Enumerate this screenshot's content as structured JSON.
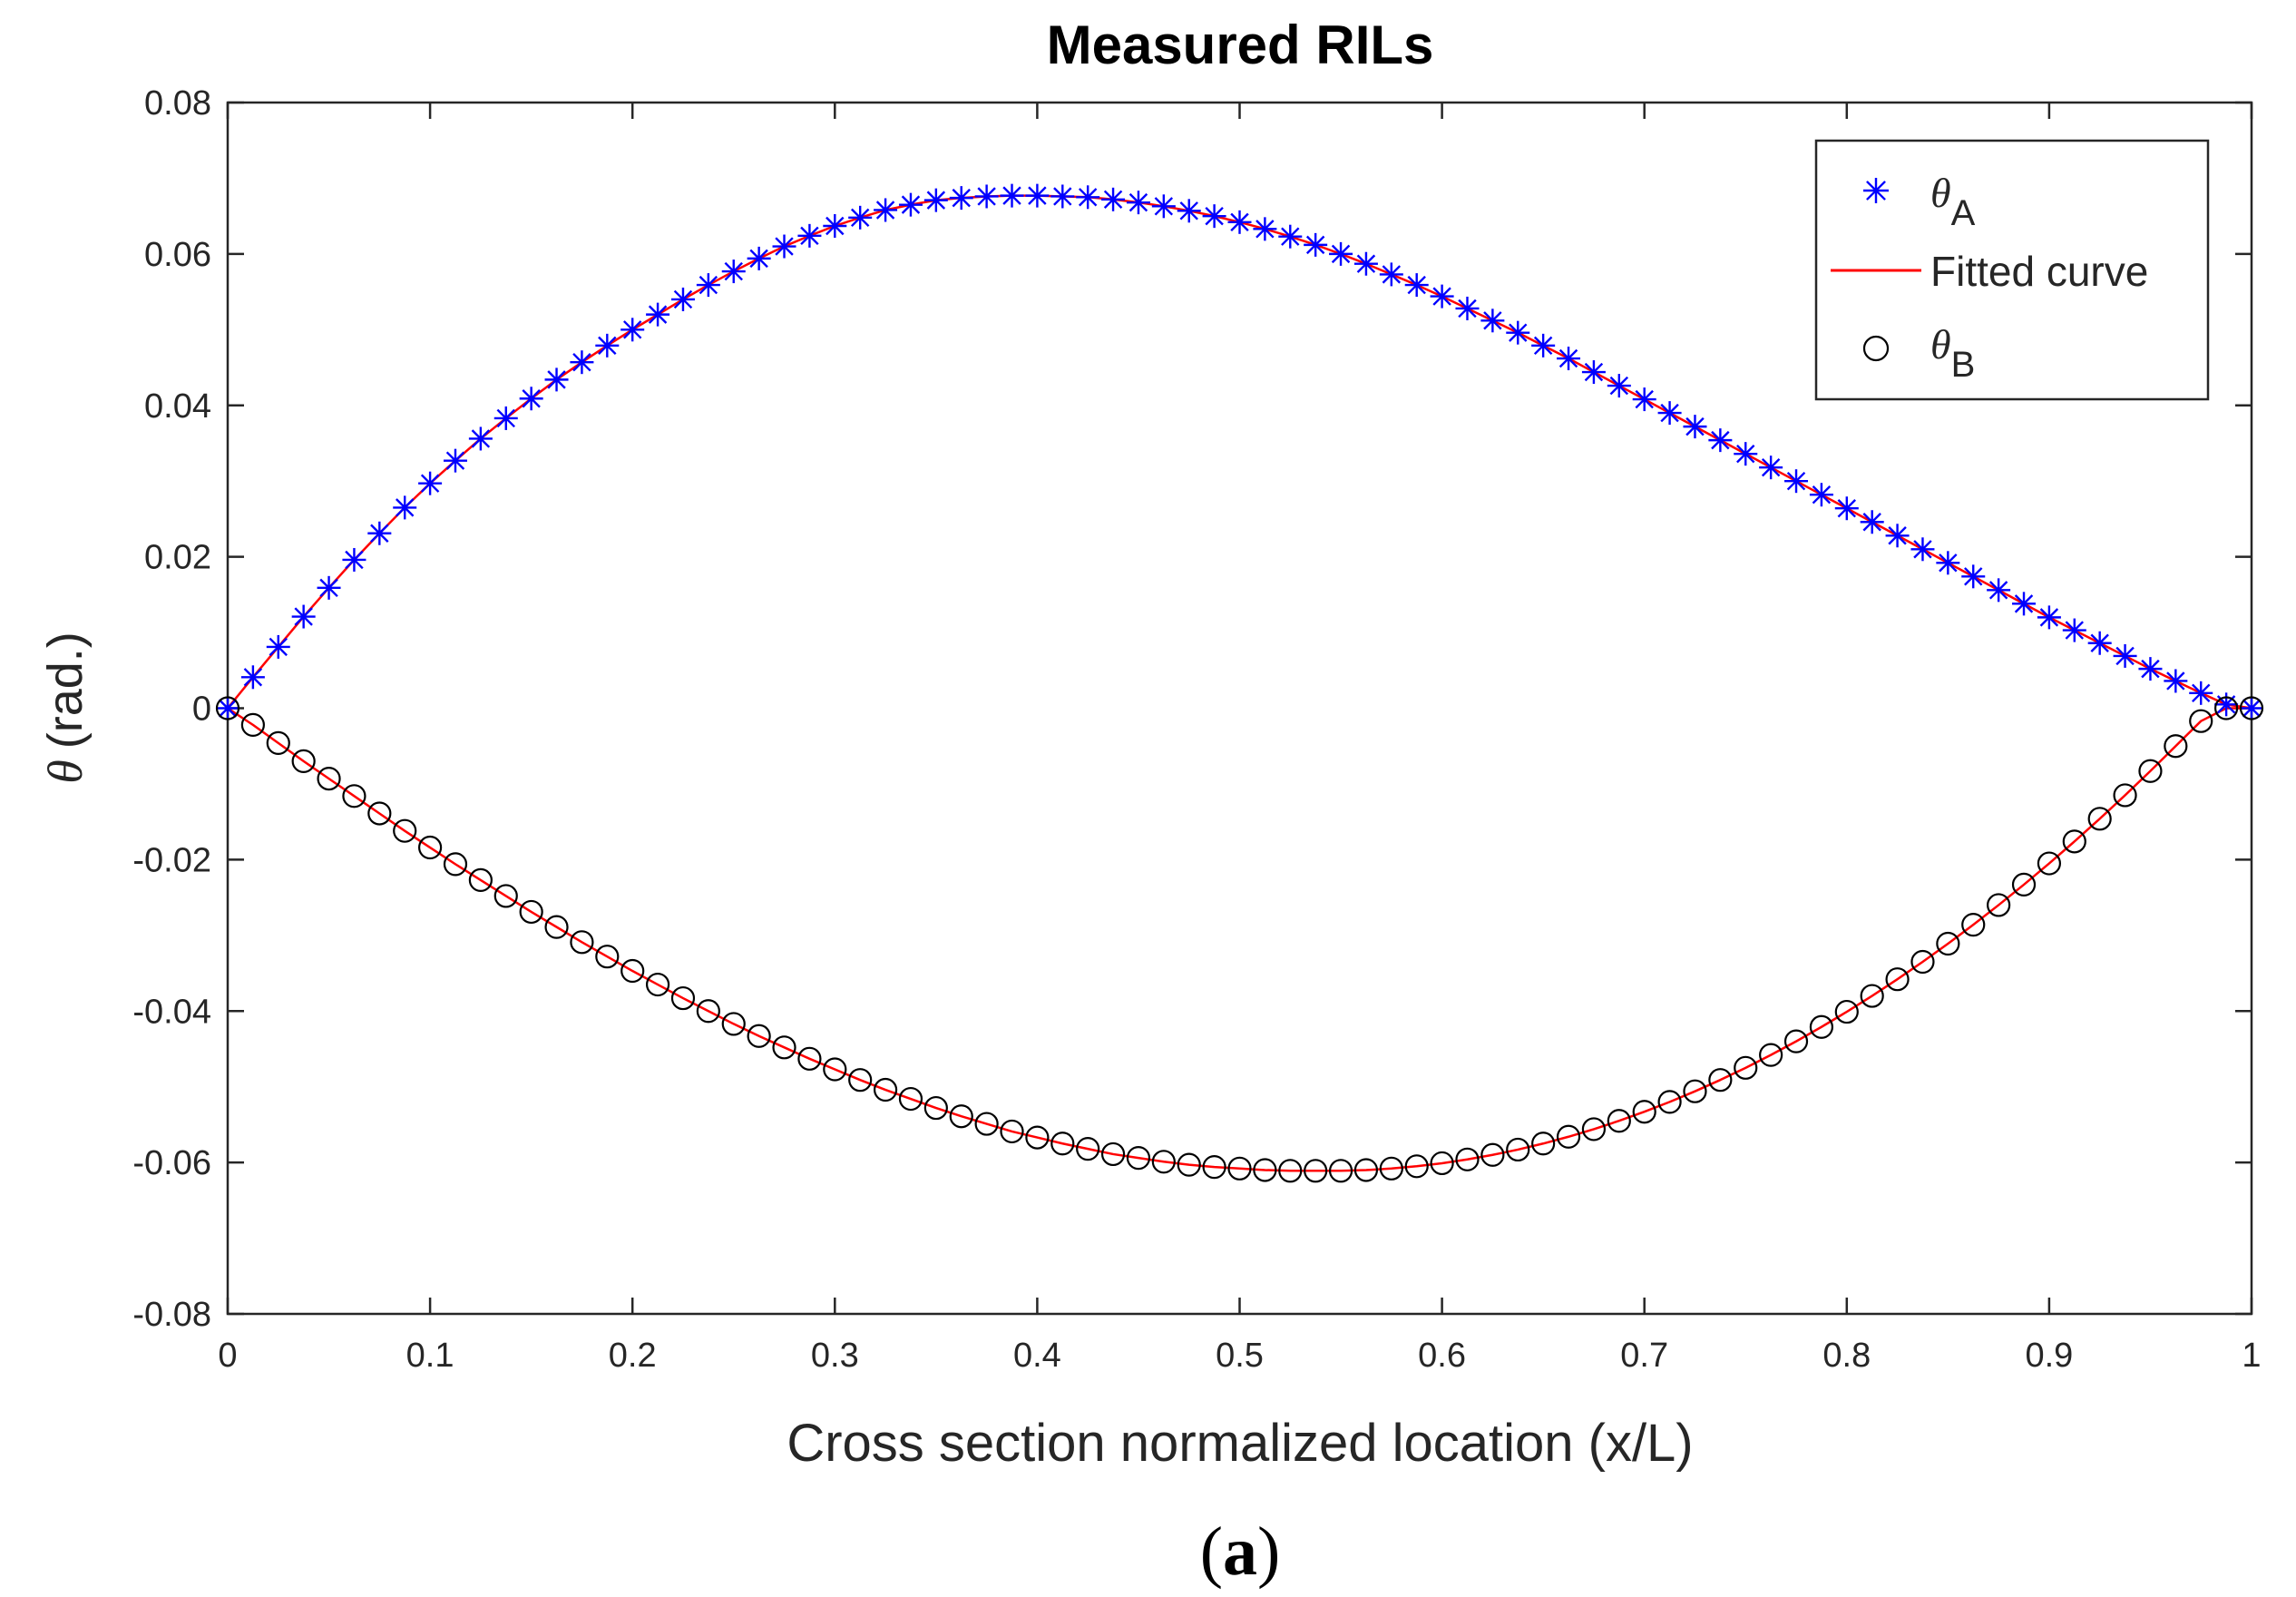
{
  "chart_data": {
    "type": "scatter",
    "title": "Measured RILs",
    "xlabel": "Cross section normalized location (x/L)",
    "ylabel_symbol": "θ",
    "ylabel_unit": "(rad.)",
    "caption_open": "(",
    "caption_letter": "a",
    "caption_close": ")",
    "xlim": [
      0,
      1
    ],
    "ylim": [
      -0.08,
      0.08
    ],
    "x_ticks": [
      0,
      0.1,
      0.2,
      0.3,
      0.4,
      0.5,
      0.6,
      0.7,
      0.8,
      0.9,
      1
    ],
    "x_tick_labels": [
      "0",
      "0.1",
      "0.2",
      "0.3",
      "0.4",
      "0.5",
      "0.6",
      "0.7",
      "0.8",
      "0.9",
      "1"
    ],
    "y_ticks": [
      -0.08,
      -0.06,
      -0.04,
      -0.02,
      0,
      0.02,
      0.04,
      0.06,
      0.08
    ],
    "y_tick_labels": [
      "-0.08",
      "-0.06",
      "-0.04",
      "-0.02",
      "0",
      "0.02",
      "0.04",
      "0.06",
      "0.08"
    ],
    "grid": false,
    "legend_position": "top-right",
    "legend": [
      {
        "symbol": "θ",
        "subscript": "A",
        "marker": "asterisk",
        "color": "#0000ff"
      },
      {
        "label": "Fitted curve",
        "marker": "line",
        "color": "#ff0000"
      },
      {
        "symbol": "θ",
        "subscript": "B",
        "marker": "circle",
        "color": "#000000"
      }
    ],
    "series": [
      {
        "name": "θA",
        "marker": "asterisk",
        "color": "#0000ff",
        "x": [
          0.0,
          0.0125,
          0.025,
          0.0375,
          0.05,
          0.0625,
          0.075,
          0.0875,
          0.1,
          0.1125,
          0.125,
          0.1375,
          0.15,
          0.1625,
          0.175,
          0.1875,
          0.2,
          0.2125,
          0.225,
          0.2375,
          0.25,
          0.2625,
          0.275,
          0.2875,
          0.3,
          0.3125,
          0.325,
          0.3375,
          0.35,
          0.3625,
          0.375,
          0.3875,
          0.4,
          0.4125,
          0.425,
          0.4375,
          0.45,
          0.4625,
          0.475,
          0.4875,
          0.5,
          0.5125,
          0.525,
          0.5375,
          0.55,
          0.5625,
          0.575,
          0.5875,
          0.6,
          0.6125,
          0.625,
          0.6375,
          0.65,
          0.6625,
          0.675,
          0.6875,
          0.7,
          0.7125,
          0.725,
          0.7375,
          0.75,
          0.7625,
          0.775,
          0.7875,
          0.8,
          0.8125,
          0.825,
          0.8375,
          0.85,
          0.8625,
          0.875,
          0.8875,
          0.9,
          0.9125,
          0.925,
          0.9375,
          0.95,
          0.9625,
          0.975,
          0.9875,
          1.0
        ],
        "y": [
          0.0,
          0.0041,
          0.0081,
          0.0121,
          0.0159,
          0.0196,
          0.0231,
          0.0265,
          0.0297,
          0.0327,
          0.0356,
          0.0383,
          0.0409,
          0.0434,
          0.0457,
          0.0479,
          0.05,
          0.052,
          0.054,
          0.0559,
          0.0577,
          0.0594,
          0.061,
          0.0624,
          0.0637,
          0.0648,
          0.0658,
          0.0665,
          0.0671,
          0.0674,
          0.0676,
          0.0677,
          0.0677,
          0.0676,
          0.0675,
          0.0672,
          0.0668,
          0.0663,
          0.0657,
          0.065,
          0.0642,
          0.0633,
          0.0623,
          0.0612,
          0.06,
          0.0587,
          0.0573,
          0.0559,
          0.0544,
          0.0528,
          0.0512,
          0.0496,
          0.0479,
          0.0462,
          0.0444,
          0.0426,
          0.0408,
          0.039,
          0.0372,
          0.0354,
          0.0336,
          0.0318,
          0.03,
          0.0282,
          0.0264,
          0.0246,
          0.0228,
          0.021,
          0.0192,
          0.0174,
          0.0156,
          0.0138,
          0.012,
          0.0103,
          0.0086,
          0.0069,
          0.0052,
          0.0036,
          0.002,
          0.0005,
          0.0
        ]
      },
      {
        "name": "θB",
        "marker": "circle",
        "color": "#000000",
        "x": [
          0.0,
          0.0125,
          0.025,
          0.0375,
          0.05,
          0.0625,
          0.075,
          0.0875,
          0.1,
          0.1125,
          0.125,
          0.1375,
          0.15,
          0.1625,
          0.175,
          0.1875,
          0.2,
          0.2125,
          0.225,
          0.2375,
          0.25,
          0.2625,
          0.275,
          0.2875,
          0.3,
          0.3125,
          0.325,
          0.3375,
          0.35,
          0.3625,
          0.375,
          0.3875,
          0.4,
          0.4125,
          0.425,
          0.4375,
          0.45,
          0.4625,
          0.475,
          0.4875,
          0.5,
          0.5125,
          0.525,
          0.5375,
          0.55,
          0.5625,
          0.575,
          0.5875,
          0.6,
          0.6125,
          0.625,
          0.6375,
          0.65,
          0.6625,
          0.675,
          0.6875,
          0.7,
          0.7125,
          0.725,
          0.7375,
          0.75,
          0.7625,
          0.775,
          0.7875,
          0.8,
          0.8125,
          0.825,
          0.8375,
          0.85,
          0.8625,
          0.875,
          0.8875,
          0.9,
          0.9125,
          0.925,
          0.9375,
          0.95,
          0.9625,
          0.975,
          0.9875,
          1.0
        ],
        "y": [
          0.0,
          -0.0022,
          -0.0046,
          -0.007,
          -0.0093,
          -0.0116,
          -0.0139,
          -0.0162,
          -0.0184,
          -0.0206,
          -0.0227,
          -0.0248,
          -0.0269,
          -0.0289,
          -0.0309,
          -0.0328,
          -0.0347,
          -0.0365,
          -0.0383,
          -0.04,
          -0.0417,
          -0.0433,
          -0.0448,
          -0.0463,
          -0.0477,
          -0.0491,
          -0.0504,
          -0.0516,
          -0.0528,
          -0.0539,
          -0.0549,
          -0.0559,
          -0.0567,
          -0.0575,
          -0.0582,
          -0.0589,
          -0.0594,
          -0.0599,
          -0.0603,
          -0.0606,
          -0.0608,
          -0.061,
          -0.0611,
          -0.0611,
          -0.0611,
          -0.061,
          -0.0608,
          -0.0605,
          -0.0601,
          -0.0596,
          -0.059,
          -0.0583,
          -0.0575,
          -0.0566,
          -0.0556,
          -0.0545,
          -0.0533,
          -0.052,
          -0.0506,
          -0.0491,
          -0.0475,
          -0.0458,
          -0.044,
          -0.0421,
          -0.0401,
          -0.038,
          -0.0358,
          -0.0335,
          -0.0311,
          -0.0286,
          -0.026,
          -0.0233,
          -0.0205,
          -0.0176,
          -0.0146,
          -0.0115,
          -0.0083,
          -0.005,
          -0.0017,
          0.0,
          0.0
        ]
      },
      {
        "name": "Fitted curve (θA)",
        "marker": "line",
        "color": "#ff0000",
        "x": [
          0.0,
          0.05,
          0.1,
          0.15,
          0.2,
          0.25,
          0.3,
          0.35,
          0.4,
          0.45,
          0.5,
          0.55,
          0.6,
          0.65,
          0.7,
          0.75,
          0.8,
          0.85,
          0.9,
          0.95,
          1.0
        ],
        "y": [
          0.0,
          0.0159,
          0.0297,
          0.0409,
          0.05,
          0.0577,
          0.0637,
          0.0671,
          0.0677,
          0.0668,
          0.0642,
          0.06,
          0.0544,
          0.0479,
          0.0408,
          0.0336,
          0.0264,
          0.0192,
          0.012,
          0.0052,
          0.0
        ]
      },
      {
        "name": "Fitted curve (θB)",
        "marker": "line",
        "color": "#ff0000",
        "x": [
          0.0,
          0.05,
          0.1,
          0.15,
          0.2,
          0.25,
          0.3,
          0.35,
          0.4,
          0.45,
          0.5,
          0.55,
          0.6,
          0.65,
          0.7,
          0.75,
          0.8,
          0.85,
          0.9,
          0.95,
          1.0
        ],
        "y": [
          0.0,
          -0.0093,
          -0.0184,
          -0.0269,
          -0.0347,
          -0.0417,
          -0.0477,
          -0.0528,
          -0.0567,
          -0.0594,
          -0.0608,
          -0.0611,
          -0.0601,
          -0.0575,
          -0.0533,
          -0.0475,
          -0.0401,
          -0.0311,
          -0.0205,
          -0.0083,
          0.0
        ]
      }
    ]
  }
}
